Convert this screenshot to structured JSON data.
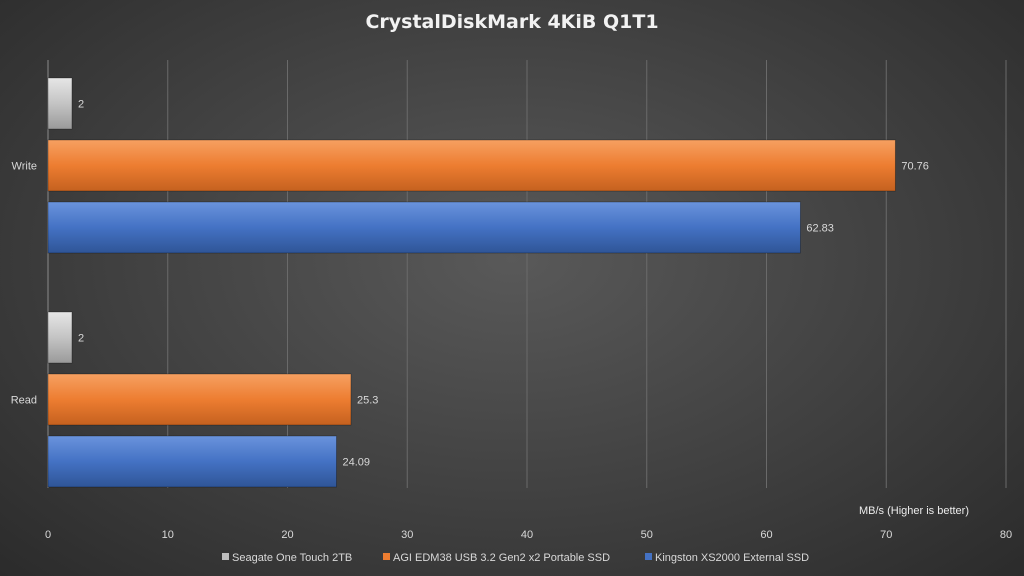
{
  "chart_data": {
    "type": "bar",
    "orientation": "horizontal",
    "title": "CrystalDiskMark 4KiB Q1T1",
    "xlabel": "MB/s (Higher is better)",
    "ylabel": "",
    "xlim": [
      0,
      80
    ],
    "x_ticks": [
      "0",
      "10",
      "20",
      "30",
      "40",
      "50",
      "60",
      "70",
      "80"
    ],
    "categories": [
      "Write",
      "Read"
    ],
    "grid": true,
    "legend_position": "bottom",
    "series": [
      {
        "name": "Seagate One Touch 2TB",
        "values": [
          2,
          2
        ],
        "labels": [
          "2",
          "2"
        ],
        "color": "#bfbfbf"
      },
      {
        "name": "AGI EDM38 USB 3.2 Gen2 x2 Portable SSD",
        "values": [
          70.76,
          25.3
        ],
        "labels": [
          "70.76",
          "25.3"
        ],
        "color": "#ed7d31"
      },
      {
        "name": "Kingston XS2000 External SSD",
        "values": [
          62.83,
          24.09
        ],
        "labels": [
          "62.83",
          "24.09"
        ],
        "color": "#4472c4"
      }
    ]
  }
}
